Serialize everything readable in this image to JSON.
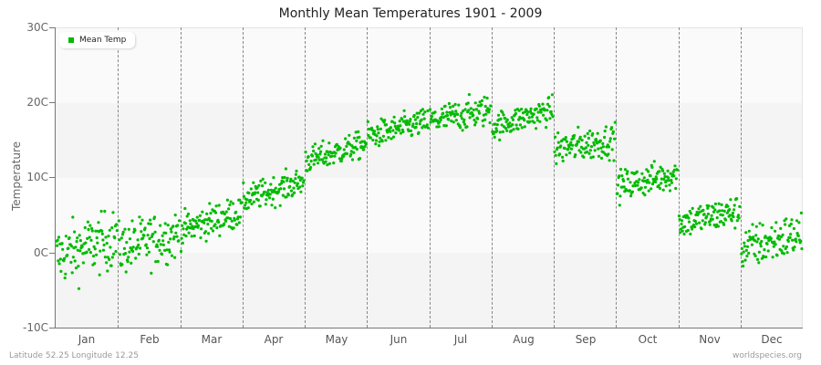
{
  "chart_data": {
    "type": "scatter",
    "title": "Monthly Mean Temperatures 1901 - 2009",
    "xlabel": "",
    "ylabel": "Temperature",
    "ylim": [
      -10,
      30
    ],
    "y_ticks": [
      "30C",
      "20C",
      "10C",
      "0C",
      "-10C"
    ],
    "y_tick_values": [
      30,
      20,
      10,
      0,
      -10
    ],
    "categories": [
      "Jan",
      "Feb",
      "Mar",
      "Apr",
      "May",
      "Jun",
      "Jul",
      "Aug",
      "Sep",
      "Oct",
      "Nov",
      "Dec"
    ],
    "grid": "alternating horizontal bands, dashed vertical month separators",
    "legend": {
      "position": "top-left",
      "entries": [
        "Mean Temp"
      ]
    },
    "series": [
      {
        "name": "Mean Temp",
        "color": "#00bb00",
        "points_per_month": 109,
        "monthly_mean": [
          0.3,
          1.0,
          4.0,
          8.3,
          13.3,
          16.6,
          18.0,
          17.7,
          14.3,
          9.4,
          4.6,
          1.3
        ],
        "monthly_min": [
          -9.0,
          -7.5,
          -1.0,
          5.0,
          10.0,
          13.5,
          15.5,
          15.0,
          10.5,
          5.5,
          0.5,
          -5.3
        ],
        "monthly_max": [
          5.5,
          5.0,
          7.0,
          11.8,
          16.5,
          20.0,
          23.0,
          21.5,
          18.5,
          13.0,
          8.3,
          5.5
        ],
        "monthly_trend_start": [
          -0.5,
          0.5,
          3.0,
          7.0,
          12.2,
          15.5,
          17.5,
          16.8,
          13.8,
          8.8,
          4.0,
          0.5
        ],
        "monthly_trend_end": [
          2.0,
          2.5,
          5.5,
          9.5,
          14.5,
          17.5,
          19.0,
          19.0,
          15.0,
          10.5,
          5.5,
          2.5
        ]
      }
    ]
  },
  "legend": {
    "label": "Mean Temp",
    "color": "#00bb00"
  },
  "footer": {
    "location": "Latitude 52.25 Longitude 12.25",
    "source": "worldspecies.org"
  }
}
